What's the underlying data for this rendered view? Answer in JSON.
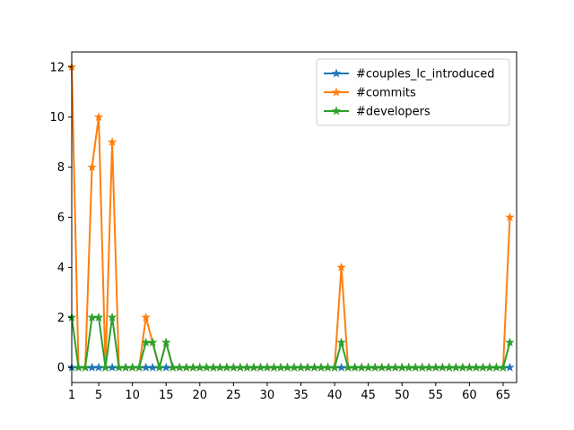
{
  "chart_data": {
    "type": "line",
    "title": "",
    "xlabel": "",
    "ylabel": "",
    "xlim": [
      1,
      67
    ],
    "ylim": [
      -0.6,
      12.6
    ],
    "xticks": [
      1,
      5,
      10,
      15,
      20,
      25,
      30,
      35,
      40,
      45,
      50,
      55,
      60,
      65
    ],
    "yticks": [
      0,
      2,
      4,
      6,
      8,
      10,
      12
    ],
    "grid": false,
    "legend_position": "top-right",
    "marker": "star",
    "x": [
      1,
      2,
      3,
      4,
      5,
      6,
      7,
      8,
      9,
      10,
      11,
      12,
      13,
      14,
      15,
      16,
      17,
      18,
      19,
      20,
      21,
      22,
      23,
      24,
      25,
      26,
      27,
      28,
      29,
      30,
      31,
      32,
      33,
      34,
      35,
      36,
      37,
      38,
      39,
      40,
      41,
      42,
      43,
      44,
      45,
      46,
      47,
      48,
      49,
      50,
      51,
      52,
      53,
      54,
      55,
      56,
      57,
      58,
      59,
      60,
      61,
      62,
      63,
      64,
      65,
      66
    ],
    "series": [
      {
        "name": "#couples_lc_introduced",
        "color": "#1f77b4",
        "values": [
          0,
          0,
          0,
          0,
          0,
          0,
          0,
          0,
          0,
          0,
          0,
          0,
          0,
          0,
          0,
          0,
          0,
          0,
          0,
          0,
          0,
          0,
          0,
          0,
          0,
          0,
          0,
          0,
          0,
          0,
          0,
          0,
          0,
          0,
          0,
          0,
          0,
          0,
          0,
          0,
          0,
          0,
          0,
          0,
          0,
          0,
          0,
          0,
          0,
          0,
          0,
          0,
          0,
          0,
          0,
          0,
          0,
          0,
          0,
          0,
          0,
          0,
          0,
          0,
          0,
          0
        ]
      },
      {
        "name": "#commits",
        "color": "#ff7f0e",
        "values": [
          12,
          0,
          0,
          8,
          10,
          0,
          9,
          0,
          0,
          0,
          0,
          2,
          1,
          0,
          1,
          0,
          0,
          0,
          0,
          0,
          0,
          0,
          0,
          0,
          0,
          0,
          0,
          0,
          0,
          0,
          0,
          0,
          0,
          0,
          0,
          0,
          0,
          0,
          0,
          0,
          4,
          0,
          0,
          0,
          0,
          0,
          0,
          0,
          0,
          0,
          0,
          0,
          0,
          0,
          0,
          0,
          0,
          0,
          0,
          0,
          0,
          0,
          0,
          0,
          0,
          6
        ]
      },
      {
        "name": "#developers",
        "color": "#2ca02c",
        "values": [
          2,
          0,
          0,
          2,
          2,
          0,
          2,
          0,
          0,
          0,
          0,
          1,
          1,
          0,
          1,
          0,
          0,
          0,
          0,
          0,
          0,
          0,
          0,
          0,
          0,
          0,
          0,
          0,
          0,
          0,
          0,
          0,
          0,
          0,
          0,
          0,
          0,
          0,
          0,
          0,
          1,
          0,
          0,
          0,
          0,
          0,
          0,
          0,
          0,
          0,
          0,
          0,
          0,
          0,
          0,
          0,
          0,
          0,
          0,
          0,
          0,
          0,
          0,
          0,
          0,
          1
        ]
      }
    ]
  }
}
